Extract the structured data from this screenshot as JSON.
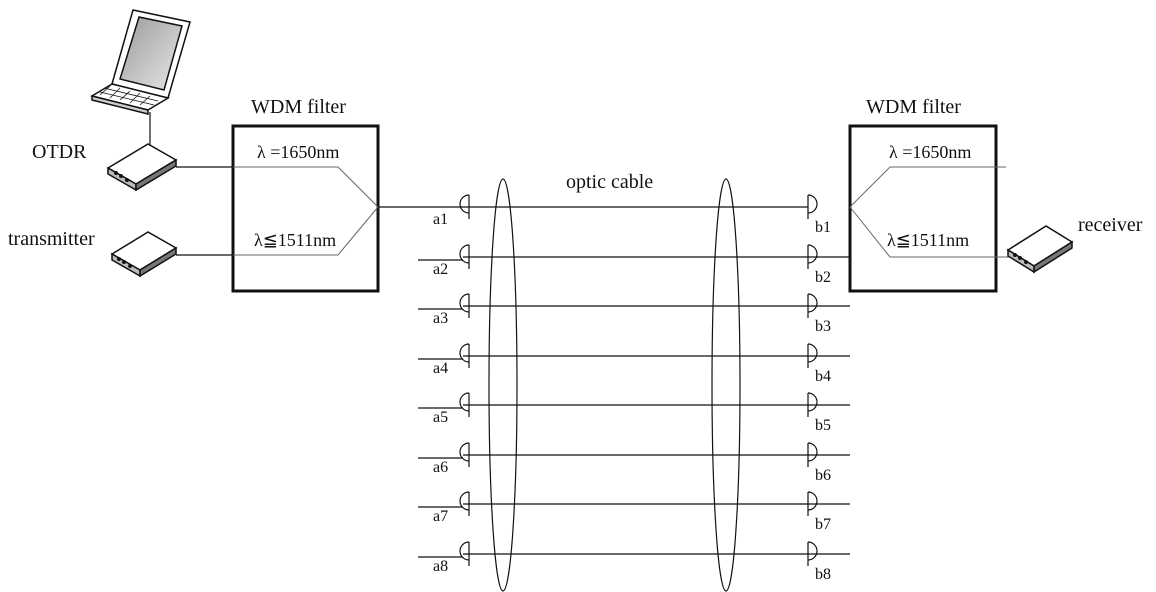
{
  "diagram": {
    "left_device": {
      "otdr_label": "OTDR",
      "transmitter_label": "transmitter"
    },
    "right_device": {
      "receiver_label": "receiver"
    },
    "left_filter": {
      "title": "WDM filter",
      "lambda_high": "λ =1650nm",
      "lambda_low": "λ≦1511nm"
    },
    "right_filter": {
      "title": "WDM filter",
      "lambda_high": "λ =1650nm",
      "lambda_low": "λ≦1511nm"
    },
    "cable": {
      "label": "optic cable"
    },
    "left_ports": [
      "a1",
      "a2",
      "a3",
      "a4",
      "a5",
      "a6",
      "a7",
      "a8"
    ],
    "right_ports": [
      "b1",
      "b2",
      "b3",
      "b4",
      "b5",
      "b6",
      "b7",
      "b8"
    ]
  }
}
